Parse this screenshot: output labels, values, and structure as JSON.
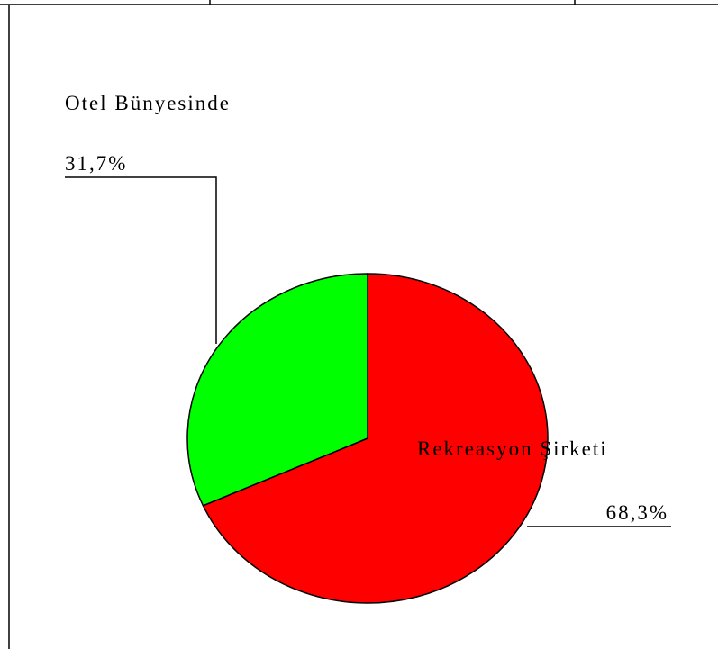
{
  "chart_data": {
    "type": "pie",
    "categories": [
      "Rekreasyon Şirketi",
      "Otel Bünyesinde"
    ],
    "values": [
      68.3,
      31.7
    ],
    "value_labels": [
      "68,3%",
      "31,7%"
    ],
    "colors": [
      "#ff0000",
      "#00ff00"
    ]
  }
}
